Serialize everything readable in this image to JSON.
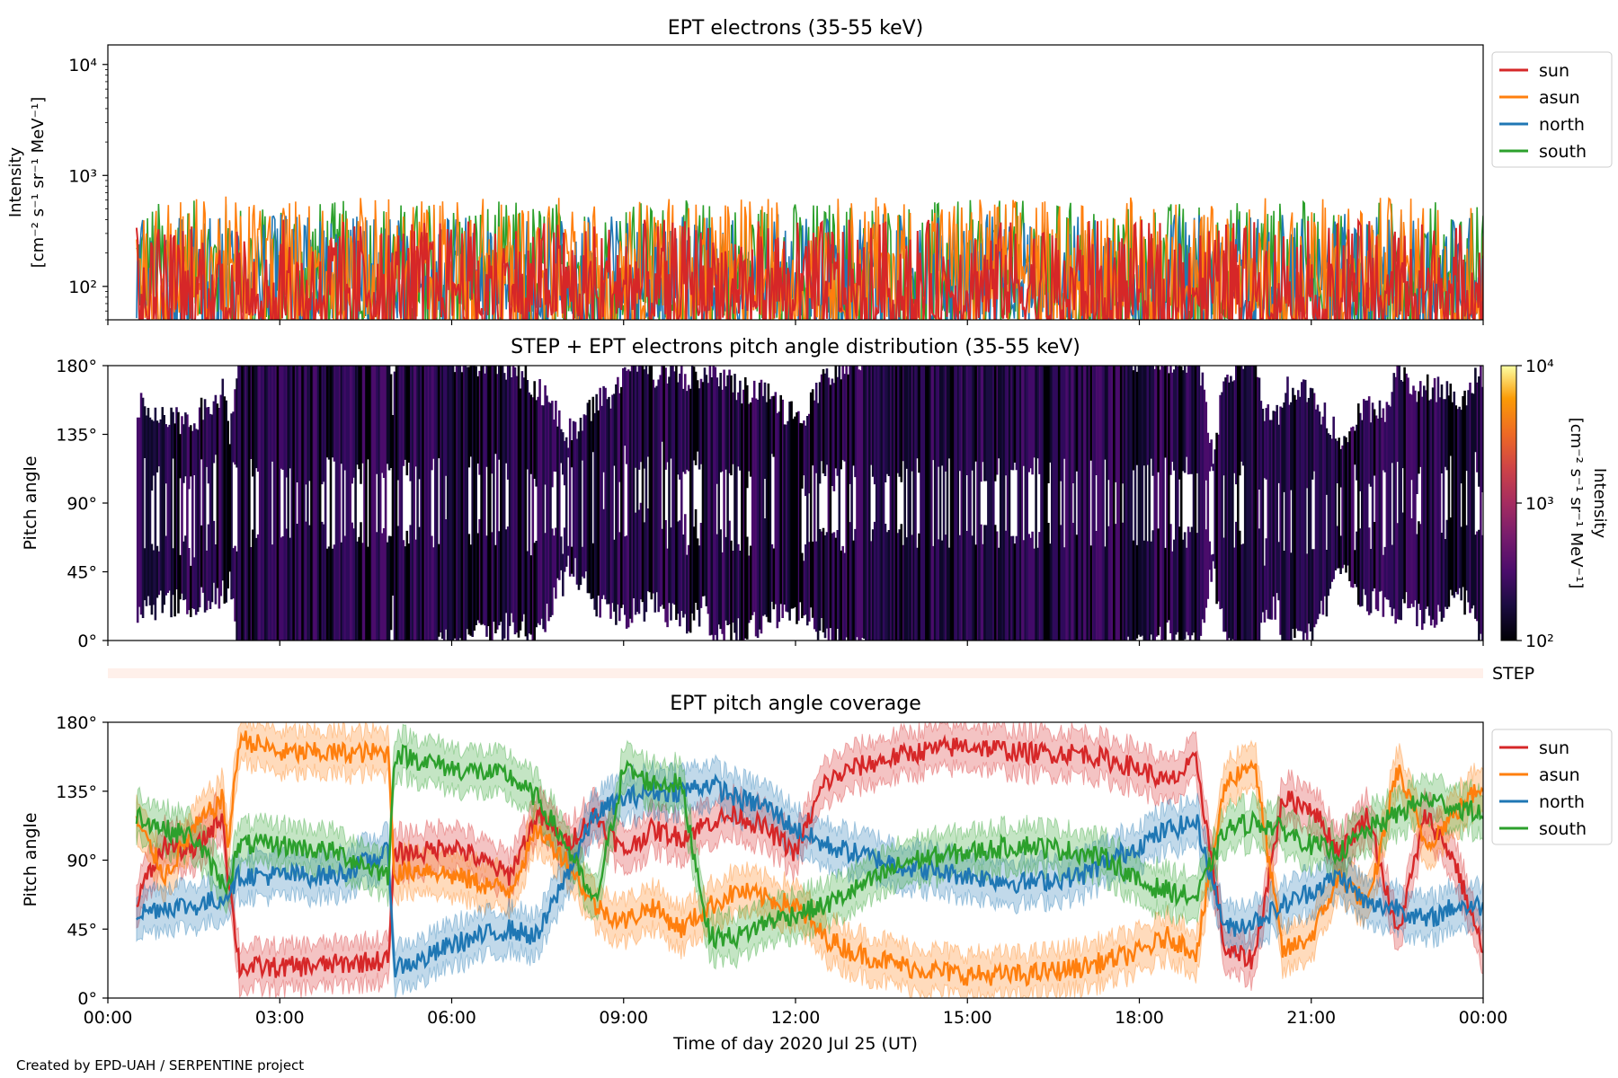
{
  "footer": "Created by EPD-UAH / SERPENTINE project",
  "colors": {
    "sun": "#d62728",
    "asun": "#ff7f0e",
    "north": "#1f77b4",
    "south": "#2ca02c",
    "step_strip": "#fff0ea"
  },
  "chart_data": [
    {
      "type": "line",
      "title": "EPT electrons (35-55 keV)",
      "ylabel_lines": [
        "Intensity",
        "[cm⁻² s⁻¹ sr⁻¹ MeV⁻¹]"
      ],
      "yscale": "log",
      "ylim": [
        50,
        15000
      ],
      "xlim_hours": [
        0,
        24
      ],
      "yticks": [
        {
          "value": 100,
          "label": "10²"
        },
        {
          "value": 1000,
          "label": "10³"
        },
        {
          "value": 10000,
          "label": "10⁴"
        }
      ],
      "legend_position": "outside-right-top",
      "series": [
        {
          "name": "sun",
          "color": "#d62728",
          "typical_range": [
            50,
            400
          ]
        },
        {
          "name": "asun",
          "color": "#ff7f0e",
          "typical_range": [
            50,
            650
          ]
        },
        {
          "name": "north",
          "color": "#1f77b4",
          "typical_range": [
            50,
            450
          ]
        },
        {
          "name": "south",
          "color": "#2ca02c",
          "typical_range": [
            50,
            600
          ]
        }
      ],
      "note": "dense noisy time series, values mostly between ~50 and ~600, from ~00:30 to 24:00 UT"
    },
    {
      "type": "heatmap",
      "title": "STEP + EPT electrons pitch angle distribution (35-55 keV)",
      "ylabel": "Pitch angle",
      "ylim": [
        0,
        180
      ],
      "yticks": [
        "0°",
        "45°",
        "90°",
        "135°",
        "180°"
      ],
      "colorbar": {
        "label_lines": [
          "Intensity",
          "[cm⁻² s⁻¹ sr⁻¹ MeV⁻¹]"
        ],
        "scale": "log",
        "range": [
          100,
          10000
        ],
        "ticks": [
          "10²",
          "10³",
          "10⁴"
        ],
        "colormap": "inferno"
      }
    },
    {
      "type": "strip",
      "label": "STEP"
    },
    {
      "type": "line",
      "title": "EPT pitch angle coverage",
      "ylabel": "Pitch angle",
      "ylim": [
        0,
        180
      ],
      "yticks": [
        "0°",
        "45°",
        "90°",
        "135°",
        "180°"
      ],
      "xlabel": "Time of day 2020 Jul 25 (UT)",
      "xticks": [
        "00:00",
        "03:00",
        "06:00",
        "09:00",
        "12:00",
        "15:00",
        "18:00",
        "21:00",
        "00:00"
      ],
      "legend_position": "outside-right-top",
      "series": [
        {
          "name": "sun",
          "color": "#d62728",
          "x": [
            0.5,
            1,
            1.5,
            2,
            2.1,
            2.3,
            3,
            4,
            4.9,
            5,
            5.5,
            6,
            7,
            7.5,
            8,
            8.5,
            9,
            9.5,
            10,
            10.5,
            11,
            11.5,
            12,
            12.5,
            13,
            13.5,
            14,
            15,
            16,
            17,
            17.5,
            18,
            18.5,
            19,
            19.5,
            20,
            20.5,
            21,
            21.5,
            22,
            22.5,
            23,
            23.5,
            24
          ],
          "y": [
            65,
            100,
            95,
            120,
            80,
            20,
            20,
            22,
            25,
            95,
            95,
            100,
            80,
            120,
            100,
            120,
            95,
            110,
            105,
            115,
            120,
            110,
            95,
            140,
            150,
            155,
            160,
            165,
            160,
            160,
            155,
            150,
            140,
            155,
            30,
            25,
            130,
            125,
            95,
            120,
            40,
            120,
            90,
            30
          ]
        },
        {
          "name": "asun",
          "color": "#ff7f0e",
          "x": [
            0.5,
            1,
            1.5,
            2,
            2.1,
            2.3,
            3,
            4,
            4.9,
            5,
            5.5,
            6,
            7,
            7.5,
            8,
            8.5,
            9,
            9.5,
            10,
            10.5,
            11,
            11.5,
            12,
            12.5,
            13,
            13.5,
            14,
            15,
            16,
            17,
            17.5,
            18,
            18.5,
            19,
            19.5,
            20,
            20.5,
            21,
            21.5,
            22,
            22.5,
            23,
            23.5,
            24
          ],
          "y": [
            115,
            80,
            110,
            130,
            100,
            170,
            160,
            160,
            160,
            80,
            85,
            80,
            70,
            110,
            90,
            60,
            50,
            60,
            45,
            60,
            70,
            65,
            60,
            40,
            30,
            25,
            20,
            15,
            15,
            20,
            25,
            30,
            40,
            30,
            140,
            155,
            30,
            40,
            80,
            60,
            150,
            100,
            120,
            140
          ]
        },
        {
          "name": "north",
          "color": "#1f77b4",
          "x": [
            0.5,
            1,
            1.5,
            2,
            2.1,
            2.3,
            3,
            4,
            4.9,
            5,
            5.5,
            6,
            7,
            7.5,
            8,
            8.5,
            9,
            9.5,
            10,
            10.5,
            11,
            11.5,
            12,
            12.5,
            13,
            13.5,
            14,
            15,
            16,
            17,
            17.5,
            18,
            18.5,
            19,
            19.5,
            20,
            20.5,
            21,
            21.5,
            22,
            22.5,
            23,
            23.5,
            24
          ],
          "y": [
            55,
            60,
            60,
            65,
            70,
            80,
            80,
            80,
            95,
            20,
            25,
            35,
            45,
            40,
            80,
            120,
            130,
            135,
            135,
            140,
            130,
            125,
            110,
            100,
            95,
            90,
            85,
            80,
            75,
            80,
            90,
            100,
            110,
            115,
            45,
            50,
            60,
            70,
            80,
            60,
            60,
            50,
            60,
            60
          ]
        },
        {
          "name": "south",
          "color": "#2ca02c",
          "x": [
            0.5,
            1,
            1.5,
            2,
            2.1,
            2.3,
            3,
            4,
            4.9,
            5,
            5.5,
            6,
            7,
            7.5,
            8,
            8.5,
            9,
            9.5,
            10,
            10.5,
            11,
            11.5,
            12,
            12.5,
            13,
            13.5,
            14,
            15,
            16,
            17,
            17.5,
            18,
            18.5,
            19,
            19.5,
            20,
            20.5,
            21,
            21.5,
            22,
            22.5,
            23,
            23.5,
            24
          ],
          "y": [
            120,
            110,
            105,
            75,
            75,
            100,
            100,
            95,
            80,
            160,
            155,
            150,
            145,
            130,
            100,
            60,
            150,
            140,
            140,
            40,
            40,
            50,
            55,
            60,
            70,
            80,
            90,
            95,
            100,
            95,
            90,
            75,
            70,
            65,
            110,
            115,
            110,
            100,
            95,
            110,
            120,
            130,
            125,
            120
          ]
        }
      ]
    }
  ]
}
